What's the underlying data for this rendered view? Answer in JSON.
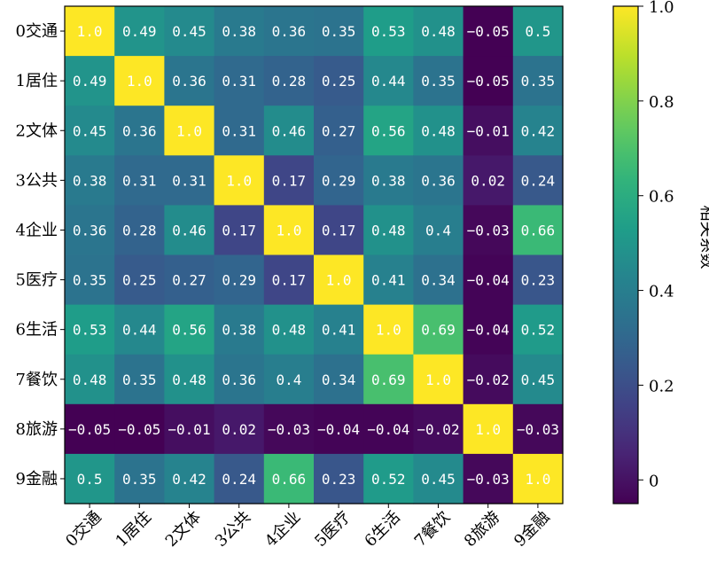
{
  "chart_data": {
    "type": "heatmap",
    "title": "",
    "xlabel": "",
    "ylabel": "",
    "rows": [
      "0交通",
      "1居住",
      "2文体",
      "3公共",
      "4企业",
      "5医疗",
      "6生活",
      "7餐饮",
      "8旅游",
      "9金融"
    ],
    "cols": [
      "0交通",
      "1居住",
      "2文体",
      "3公共",
      "4企业",
      "5医疗",
      "6生活",
      "7餐饮",
      "8旅游",
      "9金融"
    ],
    "values": [
      [
        1.0,
        0.49,
        0.45,
        0.38,
        0.36,
        0.35,
        0.53,
        0.48,
        -0.05,
        0.5
      ],
      [
        0.49,
        1.0,
        0.36,
        0.31,
        0.28,
        0.25,
        0.44,
        0.35,
        -0.05,
        0.35
      ],
      [
        0.45,
        0.36,
        1.0,
        0.31,
        0.46,
        0.27,
        0.56,
        0.48,
        -0.01,
        0.42
      ],
      [
        0.38,
        0.31,
        0.31,
        1.0,
        0.17,
        0.29,
        0.38,
        0.36,
        0.02,
        0.24
      ],
      [
        0.36,
        0.28,
        0.46,
        0.17,
        1.0,
        0.17,
        0.48,
        0.4,
        -0.03,
        0.66
      ],
      [
        0.35,
        0.25,
        0.27,
        0.29,
        0.17,
        1.0,
        0.41,
        0.34,
        -0.04,
        0.23
      ],
      [
        0.53,
        0.44,
        0.56,
        0.38,
        0.48,
        0.41,
        1.0,
        0.69,
        -0.04,
        0.52
      ],
      [
        0.48,
        0.35,
        0.48,
        0.36,
        0.4,
        0.34,
        0.69,
        1.0,
        -0.02,
        0.45
      ],
      [
        -0.05,
        -0.05,
        -0.01,
        0.02,
        -0.03,
        -0.04,
        -0.04,
        -0.02,
        1.0,
        -0.03
      ],
      [
        0.5,
        0.35,
        0.42,
        0.24,
        0.66,
        0.23,
        0.52,
        0.45,
        -0.03,
        1.0
      ]
    ],
    "value_labels": [
      [
        "1.0",
        "0.49",
        "0.45",
        "0.38",
        "0.36",
        "0.35",
        "0.53",
        "0.48",
        "−0.05",
        "0.5"
      ],
      [
        "0.49",
        "1.0",
        "0.36",
        "0.31",
        "0.28",
        "0.25",
        "0.44",
        "0.35",
        "−0.05",
        "0.35"
      ],
      [
        "0.45",
        "0.36",
        "1.0",
        "0.31",
        "0.46",
        "0.27",
        "0.56",
        "0.48",
        "−0.01",
        "0.42"
      ],
      [
        "0.38",
        "0.31",
        "0.31",
        "1.0",
        "0.17",
        "0.29",
        "0.38",
        "0.36",
        "0.02",
        "0.24"
      ],
      [
        "0.36",
        "0.28",
        "0.46",
        "0.17",
        "1.0",
        "0.17",
        "0.48",
        "0.4",
        "−0.03",
        "0.66"
      ],
      [
        "0.35",
        "0.25",
        "0.27",
        "0.29",
        "0.17",
        "1.0",
        "0.41",
        "0.34",
        "−0.04",
        "0.23"
      ],
      [
        "0.53",
        "0.44",
        "0.56",
        "0.38",
        "0.48",
        "0.41",
        "1.0",
        "0.69",
        "−0.04",
        "0.52"
      ],
      [
        "0.48",
        "0.35",
        "0.48",
        "0.36",
        "0.4",
        "0.34",
        "0.69",
        "1.0",
        "−0.02",
        "0.45"
      ],
      [
        "−0.05",
        "−0.05",
        "−0.01",
        "0.02",
        "−0.03",
        "−0.04",
        "−0.04",
        "−0.02",
        "1.0",
        "−0.03"
      ],
      [
        "0.5",
        "0.35",
        "0.42",
        "0.24",
        "0.66",
        "0.23",
        "0.52",
        "0.45",
        "−0.03",
        "1.0"
      ]
    ],
    "colormap": "viridis",
    "vmin": -0.05,
    "vmax": 1.0,
    "colorbar": {
      "label": "相关系数",
      "ticks": [
        0,
        0.2,
        0.4,
        0.6,
        0.8,
        1.0
      ],
      "tick_labels": [
        "0",
        "0.2",
        "0.4",
        "0.6",
        "0.8",
        "1.0"
      ],
      "placement": "right"
    },
    "cell_text_color": "#ffffff",
    "grid": false,
    "legend": "none"
  }
}
